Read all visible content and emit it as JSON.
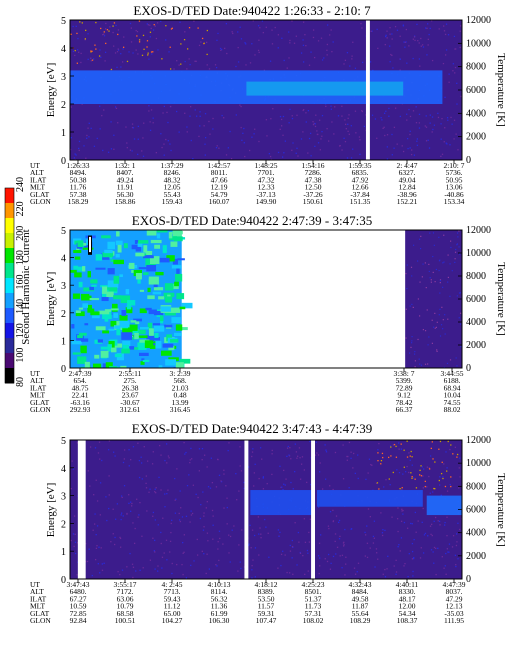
{
  "colorbar": {
    "label": "Second Harmonic Current",
    "ticks": [
      "80",
      "100",
      "120",
      "140",
      "160",
      "180",
      "200",
      "220",
      "240"
    ],
    "colors": [
      "#000000",
      "#4a0a72",
      "#2a2a9a",
      "#1414e6",
      "#1e5aff",
      "#14a0ff",
      "#00e6ff",
      "#00e68c",
      "#00e600",
      "#c8f000",
      "#ffff00",
      "#ff9600",
      "#ff1400"
    ]
  },
  "chart_data": [
    {
      "type": "heatmap",
      "title": "EXOS-D/TED   Date:940422   1:26:33 - 2:10: 7",
      "ylabel": "Energy [eV]",
      "y2label": "Temperature [K]",
      "ylim": [
        0,
        5
      ],
      "y2lim": [
        0,
        12000
      ],
      "yticks": [
        "0",
        "1",
        "2",
        "3",
        "4",
        "5"
      ],
      "y2ticks": [
        "0",
        "2000",
        "4000",
        "6000",
        "8000",
        "10000",
        "12000"
      ],
      "background_color": "#3c1c8c",
      "data_gaps_fraction": [
        [
          0.755,
          0.765
        ]
      ],
      "bands": [
        {
          "from_energy": 2.0,
          "to_energy": 3.2,
          "color": "#1e64ff",
          "x_range_fraction": [
            0.0,
            0.95
          ]
        },
        {
          "from_energy": 2.3,
          "to_energy": 2.8,
          "color": "#14a0f0",
          "x_range_fraction": [
            0.45,
            0.85
          ]
        }
      ],
      "ephemeris_labels": [
        "UT",
        "ALT",
        "ILAT",
        "MLT",
        "GLAT",
        "GLON"
      ],
      "ephemeris": [
        [
          "1:26:33",
          "8494.",
          "50.38",
          "11.76",
          "57.38",
          "158.29"
        ],
        [
          "1:32: 1",
          "8407.",
          "49.24",
          "11.91",
          "56.30",
          "158.86"
        ],
        [
          "1:37:29",
          "8246.",
          "48.32",
          "12.05",
          "55.43",
          "159.43"
        ],
        [
          "1:42:57",
          "8011.",
          "47.66",
          "12.19",
          "54.79",
          "160.07"
        ],
        [
          "1:48:25",
          "7701.",
          "47.32",
          "12.33",
          "-37.13",
          "149.90"
        ],
        [
          "1:54:16",
          "7286.",
          "47.38",
          "12.50",
          "-37.26",
          "150.61"
        ],
        [
          "1:59:35",
          "6835.",
          "47.92",
          "12.66",
          "-37.84",
          "151.35"
        ],
        [
          "2: 4:47",
          "6327.",
          "49.04",
          "12.84",
          "-38.96",
          "152.21"
        ],
        [
          "2:10: 7",
          "5736.",
          "50.95",
          "13.06",
          "-40.86",
          "153.34"
        ]
      ]
    },
    {
      "type": "heatmap",
      "title": "EXOS-D/TED   Date:940422   2:47:39 - 3:47:35",
      "ylabel": "Energy [eV]",
      "y2label": "Temperature [K]",
      "ylim": [
        0,
        5
      ],
      "y2lim": [
        0,
        12000
      ],
      "yticks": [
        "0",
        "1",
        "2",
        "3",
        "4",
        "5"
      ],
      "y2ticks": [
        "0",
        "2000",
        "4000",
        "6000",
        "8000",
        "10000",
        "12000"
      ],
      "background_color": "#3c1c8c",
      "data_segments_fraction": [
        [
          0.0,
          0.285
        ],
        [
          0.855,
          1.0
        ]
      ],
      "ephemeris_labels": [
        "UT",
        "ALT",
        "ILAT",
        "MLT",
        "GLAT",
        "GLON"
      ],
      "ephemeris_left": [
        [
          "2:47:39",
          "654.",
          "48.75",
          "22.41",
          "-63.16",
          "292.93"
        ],
        [
          "2:55:11",
          "275.",
          "26.38",
          "23.67",
          "-30.67",
          "312.61"
        ],
        [
          "3: 2:39",
          "568.",
          "21.03",
          "0.48",
          "13.99",
          "316.45"
        ]
      ],
      "ephemeris_right": [
        [
          "3:38: 7",
          "5399.",
          "72.89",
          "9.12",
          "78.42",
          "66.37"
        ],
        [
          "3:44:55",
          "6188.",
          "68.94",
          "10.04",
          "74.55",
          "88.02"
        ]
      ]
    },
    {
      "type": "heatmap",
      "title": "EXOS-D/TED   Date:940422   3:47:43 - 4:47:39",
      "ylabel": "Energy [eV]",
      "y2label": "Temperature [K]",
      "ylim": [
        0,
        5
      ],
      "y2lim": [
        0,
        12000
      ],
      "yticks": [
        "0",
        "1",
        "2",
        "3",
        "4",
        "5"
      ],
      "y2ticks": [
        "0",
        "2000",
        "4000",
        "6000",
        "8000",
        "10000",
        "12000"
      ],
      "background_color": "#3c1c8c",
      "data_gaps_fraction": [
        [
          0.02,
          0.04
        ],
        [
          0.445,
          0.455
        ],
        [
          0.615,
          0.625
        ]
      ],
      "bands": [
        {
          "from_energy": 2.3,
          "to_energy": 3.2,
          "color": "#1e50f0",
          "x_range_fraction": [
            0.46,
            0.62
          ]
        },
        {
          "from_energy": 2.6,
          "to_energy": 3.2,
          "color": "#1e50f0",
          "x_range_fraction": [
            0.63,
            0.9
          ]
        },
        {
          "from_energy": 2.3,
          "to_energy": 3.0,
          "color": "#1e6eff",
          "x_range_fraction": [
            0.91,
            1.0
          ]
        }
      ],
      "ephemeris_labels": [
        "UT",
        "ALT",
        "ILAT",
        "MLT",
        "GLAT",
        "GLON"
      ],
      "ephemeris": [
        [
          "3:47:43",
          "6480.",
          "67.27",
          "10.59",
          "72.85",
          "92.84"
        ],
        [
          "3:55:17",
          "7172.",
          "63.06",
          "10.79",
          "68.58",
          "100.51"
        ],
        [
          "4: 2:45",
          "7713.",
          "59.43",
          "11.12",
          "65.00",
          "104.27"
        ],
        [
          "4:10:13",
          "8114.",
          "56.32",
          "11.36",
          "61.99",
          "106.30"
        ],
        [
          "4:18:12",
          "8389.",
          "53.50",
          "11.57",
          "59.31",
          "107.47"
        ],
        [
          "4:25:23",
          "8501.",
          "51.37",
          "11.73",
          "57.31",
          "108.02"
        ],
        [
          "4:32:43",
          "8484.",
          "49.58",
          "11.87",
          "55.64",
          "108.29"
        ],
        [
          "4:40:11",
          "8330.",
          "48.17",
          "12.00",
          "54.34",
          "108.37"
        ],
        [
          "4:47:39",
          "8037.",
          "47.29",
          "12.13",
          "-35.03",
          "111.95"
        ]
      ]
    }
  ]
}
